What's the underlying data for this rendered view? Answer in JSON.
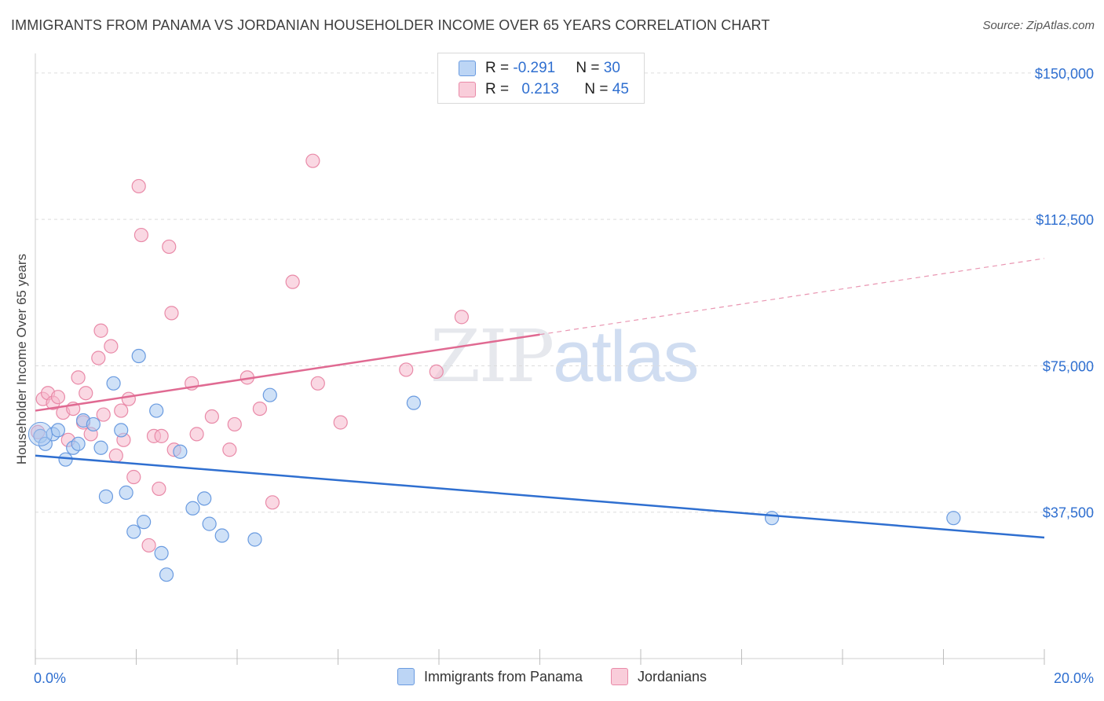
{
  "header": {
    "title": "IMMIGRANTS FROM PANAMA VS JORDANIAN HOUSEHOLDER INCOME OVER 65 YEARS CORRELATION CHART",
    "source": "Source: ZipAtlas.com"
  },
  "watermark": {
    "zip": "ZIP",
    "atlas": "atlas"
  },
  "legend": {
    "rows": [
      {
        "r_label": "R = ",
        "r_value": "-0.291",
        "n_label": "N = ",
        "n_value": "30",
        "color": "#a8c8f0"
      },
      {
        "r_label": "R = ",
        "r_value": "0.213",
        "n_label": "N = ",
        "n_value": "45",
        "color": "#f6b8cc"
      }
    ]
  },
  "bottom_legend": [
    {
      "label": "Immigrants from Panama",
      "color": "#a8c8f0"
    },
    {
      "label": "Jordanians",
      "color": "#f6b8cc"
    }
  ],
  "chart_data": {
    "type": "scatter",
    "title": "IMMIGRANTS FROM PANAMA VS JORDANIAN HOUSEHOLDER INCOME OVER 65 YEARS CORRELATION CHART",
    "xlabel": "",
    "ylabel": "Householder Income Over 65 years",
    "xlim": [
      0,
      20
    ],
    "ylim": [
      0,
      153000
    ],
    "x_tick_labels": [
      {
        "value": 0,
        "label": "0.0%"
      },
      {
        "value": 20,
        "label": "20.0%"
      }
    ],
    "y_ticks": [
      {
        "value": 37500,
        "label": "$37,500"
      },
      {
        "value": 75000,
        "label": "$75,000"
      },
      {
        "value": 112500,
        "label": "$112,500"
      },
      {
        "value": 150000,
        "label": "$150,000"
      }
    ],
    "colors": {
      "panama_fill": "#a8c8f0",
      "panama_stroke": "#6a9be0",
      "panama_line": "#2f6fd0",
      "jordan_fill": "#f6b8cc",
      "jordan_stroke": "#e98aa8",
      "jordan_line": "#e06a92",
      "axis_label": "#2f6fd0",
      "grid": "#dddddd"
    },
    "series": [
      {
        "name": "Immigrants from Panama",
        "r": -0.291,
        "n": 30,
        "trend": {
          "x0": 0,
          "y0": 52000,
          "x1": 20,
          "y1": 31000,
          "solid_until": 20
        },
        "points": [
          [
            0.1,
            57000
          ],
          [
            0.2,
            55000
          ],
          [
            0.35,
            57500
          ],
          [
            0.45,
            58500
          ],
          [
            0.6,
            51000
          ],
          [
            0.75,
            54000
          ],
          [
            0.85,
            55000
          ],
          [
            0.95,
            61000
          ],
          [
            1.15,
            60000
          ],
          [
            1.3,
            54000
          ],
          [
            1.4,
            41500
          ],
          [
            1.55,
            70500
          ],
          [
            1.7,
            58500
          ],
          [
            1.8,
            42500
          ],
          [
            1.95,
            32500
          ],
          [
            2.05,
            77500
          ],
          [
            2.15,
            35000
          ],
          [
            2.4,
            63500
          ],
          [
            2.5,
            27000
          ],
          [
            2.6,
            21500
          ],
          [
            2.87,
            53000
          ],
          [
            3.12,
            38500
          ],
          [
            3.35,
            41000
          ],
          [
            3.45,
            34500
          ],
          [
            3.7,
            31500
          ],
          [
            4.35,
            30500
          ],
          [
            4.65,
            67500
          ],
          [
            7.5,
            65500
          ],
          [
            14.6,
            36000
          ],
          [
            18.2,
            36000
          ]
        ]
      },
      {
        "name": "Jordanians",
        "r": 0.213,
        "n": 45,
        "trend": {
          "x0": 0,
          "y0": 63500,
          "x1": 20,
          "y1": 102500,
          "solid_until": 10
        },
        "points": [
          [
            0.05,
            58000
          ],
          [
            0.15,
            66500
          ],
          [
            0.25,
            68000
          ],
          [
            0.35,
            65500
          ],
          [
            0.45,
            67000
          ],
          [
            0.55,
            63000
          ],
          [
            0.65,
            56000
          ],
          [
            0.75,
            64000
          ],
          [
            0.85,
            72000
          ],
          [
            0.95,
            60500
          ],
          [
            1.0,
            68000
          ],
          [
            1.1,
            57500
          ],
          [
            1.25,
            77000
          ],
          [
            1.3,
            84000
          ],
          [
            1.35,
            62500
          ],
          [
            1.5,
            80000
          ],
          [
            1.6,
            52000
          ],
          [
            1.7,
            63500
          ],
          [
            1.75,
            56000
          ],
          [
            1.85,
            66500
          ],
          [
            1.95,
            46500
          ],
          [
            2.05,
            121000
          ],
          [
            2.1,
            108500
          ],
          [
            2.25,
            29000
          ],
          [
            2.35,
            57000
          ],
          [
            2.45,
            43500
          ],
          [
            2.5,
            57000
          ],
          [
            2.65,
            105500
          ],
          [
            2.7,
            88500
          ],
          [
            2.75,
            53500
          ],
          [
            3.1,
            70500
          ],
          [
            3.2,
            57500
          ],
          [
            3.5,
            62000
          ],
          [
            3.85,
            53500
          ],
          [
            3.95,
            60000
          ],
          [
            4.2,
            72000
          ],
          [
            4.45,
            64000
          ],
          [
            4.7,
            40000
          ],
          [
            5.1,
            96500
          ],
          [
            5.5,
            127500
          ],
          [
            5.6,
            70500
          ],
          [
            6.05,
            60500
          ],
          [
            7.35,
            74000
          ],
          [
            7.95,
            73500
          ],
          [
            8.45,
            87500
          ]
        ]
      }
    ]
  }
}
